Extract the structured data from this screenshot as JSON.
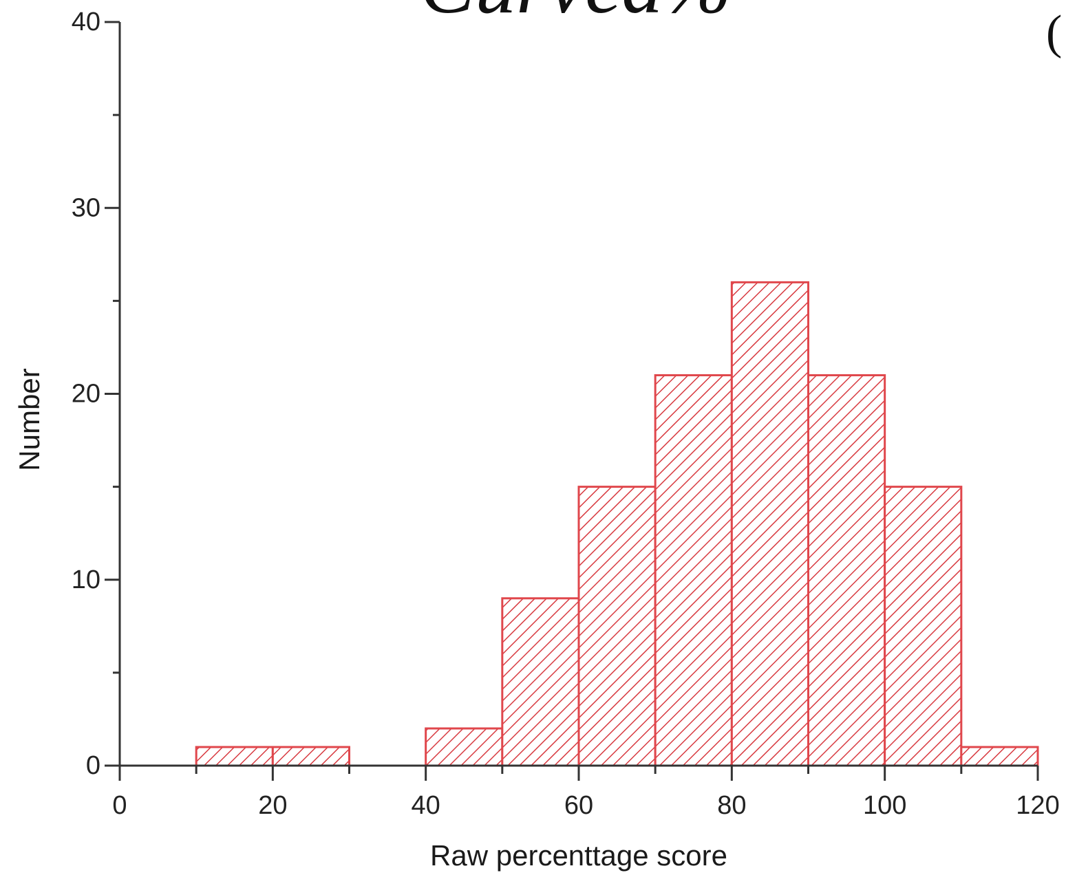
{
  "chart_data": {
    "type": "bar",
    "bins": [
      {
        "x0": 10,
        "x1": 20,
        "count": 1
      },
      {
        "x0": 20,
        "x1": 30,
        "count": 1
      },
      {
        "x0": 30,
        "x1": 40,
        "count": 0
      },
      {
        "x0": 40,
        "x1": 50,
        "count": 2
      },
      {
        "x0": 50,
        "x1": 60,
        "count": 9
      },
      {
        "x0": 60,
        "x1": 70,
        "count": 15
      },
      {
        "x0": 70,
        "x1": 80,
        "count": 21
      },
      {
        "x0": 80,
        "x1": 90,
        "count": 26
      },
      {
        "x0": 90,
        "x1": 100,
        "count": 21
      },
      {
        "x0": 100,
        "x1": 110,
        "count": 15
      },
      {
        "x0": 110,
        "x1": 120,
        "count": 1
      }
    ],
    "xlabel": "Raw percenttage score",
    "ylabel": "Number",
    "xlim": [
      0,
      120
    ],
    "ylim": [
      0,
      40
    ],
    "xticks": [
      "0",
      "20",
      "40",
      "60",
      "80",
      "100",
      "120"
    ],
    "yticks": [
      "0",
      "10",
      "20",
      "30",
      "40"
    ],
    "bar_color": "#e0474c",
    "grid": false
  },
  "cropped_heading": {
    "text": "Curved% =",
    "paren": "("
  }
}
